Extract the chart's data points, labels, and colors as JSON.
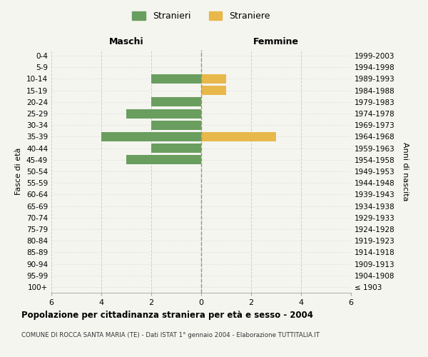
{
  "age_groups": [
    "100+",
    "95-99",
    "90-94",
    "85-89",
    "80-84",
    "75-79",
    "70-74",
    "65-69",
    "60-64",
    "55-59",
    "50-54",
    "45-49",
    "40-44",
    "35-39",
    "30-34",
    "25-29",
    "20-24",
    "15-19",
    "10-14",
    "5-9",
    "0-4"
  ],
  "birth_years": [
    "≤ 1903",
    "1904-1908",
    "1909-1913",
    "1914-1918",
    "1919-1923",
    "1924-1928",
    "1929-1933",
    "1934-1938",
    "1939-1943",
    "1944-1948",
    "1949-1953",
    "1954-1958",
    "1959-1963",
    "1964-1968",
    "1969-1973",
    "1974-1978",
    "1979-1983",
    "1984-1988",
    "1989-1993",
    "1994-1998",
    "1999-2003"
  ],
  "males": [
    0,
    0,
    0,
    0,
    0,
    0,
    0,
    0,
    0,
    0,
    0,
    3,
    2,
    4,
    2,
    3,
    2,
    0,
    2,
    0,
    0
  ],
  "females": [
    0,
    0,
    0,
    0,
    0,
    0,
    0,
    0,
    0,
    0,
    0,
    0,
    0,
    3,
    0,
    0,
    0,
    1,
    1,
    0,
    0
  ],
  "male_color": "#6a9e5f",
  "female_color": "#e8b84b",
  "title": "Popolazione per cittadinanza straniera per età e sesso - 2004",
  "subtitle": "COMUNE DI ROCCA SANTA MARIA (TE) - Dati ISTAT 1° gennaio 2004 - Elaborazione TUTTITALIA.IT",
  "xlabel_left": "Maschi",
  "xlabel_right": "Femmine",
  "ylabel_left": "Fasce di età",
  "ylabel_right": "Anni di nascita",
  "legend_male": "Stranieri",
  "legend_female": "Straniere",
  "xlim": 6,
  "background_color": "#f5f5f0",
  "grid_color": "#cccccc",
  "bar_height": 0.8
}
